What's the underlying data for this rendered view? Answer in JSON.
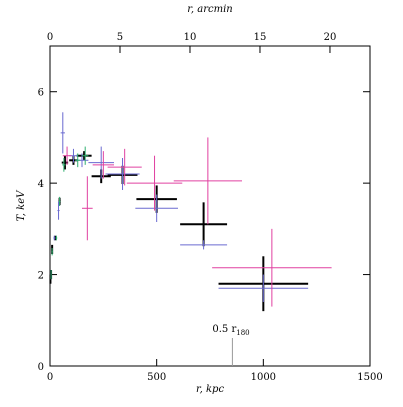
{
  "chart_data": {
    "type": "errorbar",
    "xlabel": "r, kpc",
    "ylabel": "T, keV",
    "x2label": "r, arcmin",
    "xlim": [
      0,
      1500
    ],
    "xticks": [
      0,
      500,
      1000,
      1500
    ],
    "ylim": [
      0,
      7
    ],
    "yticks": [
      0,
      2,
      4,
      6
    ],
    "x2lim": [
      0,
      22.86
    ],
    "x2ticks": [
      0,
      5,
      10,
      15,
      20
    ],
    "annotation": {
      "text": "0.5 r",
      "sub": "180",
      "x": 855
    },
    "series": [
      {
        "color": "#000000",
        "x": [
          1000,
          720,
          500,
          340,
          240,
          160,
          110,
          70,
          45,
          25,
          10,
          5,
          2
        ],
        "xerr": [
          210,
          110,
          95,
          70,
          45,
          35,
          20,
          15,
          5,
          5,
          3,
          2,
          1
        ],
        "values": [
          1.8,
          3.1,
          3.65,
          4.18,
          4.15,
          4.6,
          4.5,
          4.45,
          3.6,
          2.8,
          2.55,
          2.0,
          1.9
        ],
        "yerr": [
          0.6,
          0.48,
          0.3,
          0.2,
          0.15,
          0.1,
          0.1,
          0.15,
          0.08,
          0.05,
          0.1,
          0.1,
          0.1
        ]
      },
      {
        "color": "#6a6ad0",
        "x": [
          1000,
          720,
          500,
          340,
          240,
          150,
          110,
          60,
          40,
          20,
          5
        ],
        "xerr": [
          210,
          110,
          100,
          80,
          60,
          30,
          20,
          10,
          5,
          4,
          2
        ],
        "values": [
          1.7,
          2.65,
          3.45,
          4.2,
          4.45,
          4.5,
          4.6,
          5.1,
          3.4,
          2.8,
          2.0
        ],
        "yerr": [
          0.3,
          0.1,
          0.3,
          0.35,
          0.35,
          0.15,
          0.15,
          0.45,
          0.2,
          0.05,
          0.1
        ]
      },
      {
        "color": "#e040a0",
        "x": [
          1040,
          740,
          490,
          350,
          250,
          175,
          80
        ],
        "xerr": [
          280,
          160,
          130,
          80,
          50,
          25,
          20
        ],
        "values": [
          2.15,
          4.05,
          4.0,
          4.35,
          4.4,
          3.45,
          4.6
        ],
        "yerr": [
          0.85,
          0.95,
          0.6,
          0.4,
          0.3,
          0.7,
          0.2
        ]
      },
      {
        "color": "#30b070",
        "x": [
          165,
          130,
          65,
          45,
          30,
          10,
          5
        ],
        "xerr": [
          15,
          12,
          8,
          4,
          4,
          3,
          2
        ],
        "values": [
          4.6,
          4.5,
          4.4,
          3.6,
          2.8,
          2.5,
          2.0
        ],
        "yerr": [
          0.2,
          0.15,
          0.15,
          0.1,
          0.05,
          0.08,
          0.1
        ]
      }
    ]
  }
}
